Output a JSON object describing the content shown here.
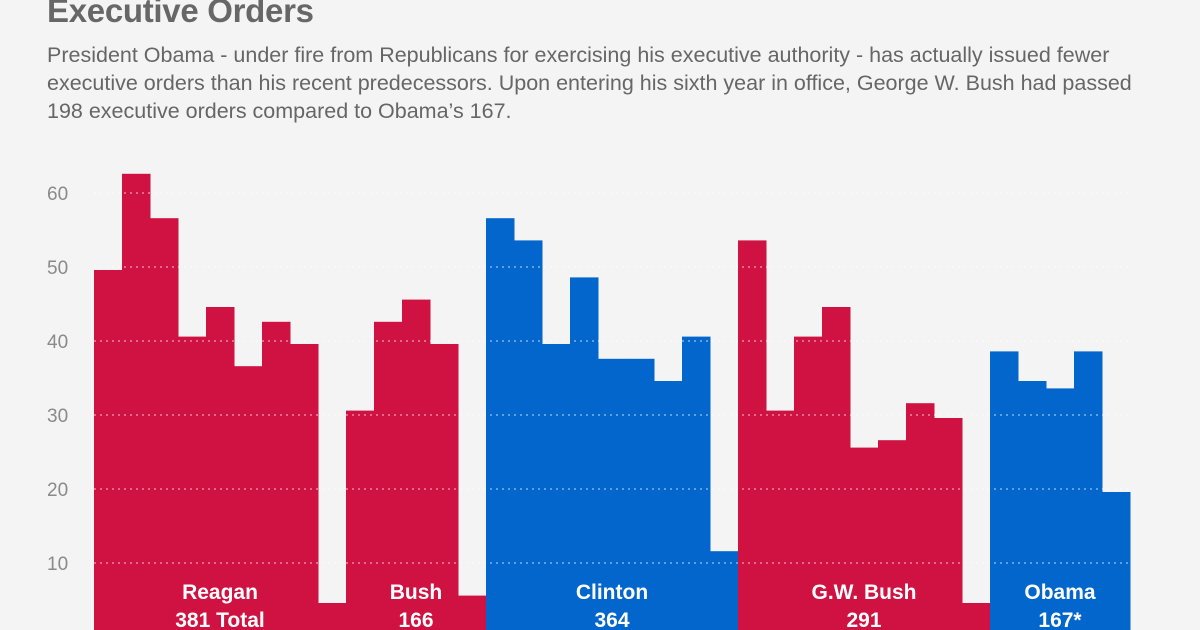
{
  "title": "Executive Orders",
  "subtitle": "President Obama - under fire from Republicans for exercising his executive authority -  has actually issued fewer executive orders than his recent predecessors. Upon entering his sixth year in office, George W. Bush had passed 198 executive orders compared to Obama’s 167.",
  "chart_data": {
    "type": "bar",
    "title": "Executive Orders",
    "xlabel": "",
    "ylabel": "",
    "ylim": [
      0,
      65
    ],
    "yticks": [
      "10",
      "20",
      "30",
      "40",
      "50",
      "60"
    ],
    "grid": true,
    "colors": {
      "republican": "#cf1241",
      "democrat": "#0366cc"
    },
    "series": [
      {
        "name": "Reagan",
        "label": "381 Total",
        "party": "republican",
        "values": [
          50,
          63,
          57,
          41,
          45,
          37,
          43,
          40,
          5
        ]
      },
      {
        "name": "Bush",
        "label": "166",
        "party": "republican",
        "values": [
          31,
          43,
          46,
          40,
          6
        ]
      },
      {
        "name": "Clinton",
        "label": "364",
        "party": "democrat",
        "values": [
          57,
          54,
          40,
          49,
          38,
          38,
          35,
          41,
          12
        ]
      },
      {
        "name": "G.W. Bush",
        "label": "291",
        "party": "republican",
        "values": [
          54,
          31,
          41,
          45,
          26,
          27,
          32,
          30,
          5
        ]
      },
      {
        "name": "Obama",
        "label": "167*",
        "party": "democrat",
        "values": [
          39,
          35,
          34,
          39,
          20
        ]
      }
    ]
  }
}
